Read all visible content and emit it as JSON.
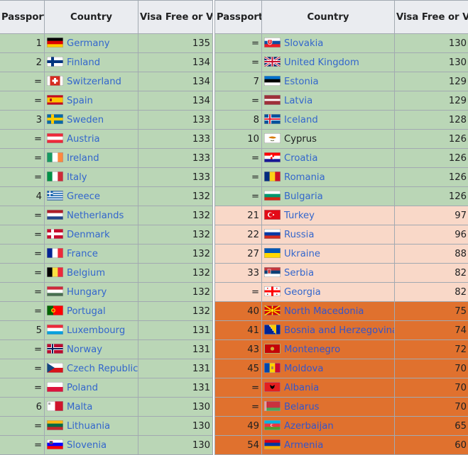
{
  "headers": {
    "rank": "Passport Rank",
    "country": "Country",
    "visa": "Visa Free or Visa on Arrival"
  },
  "left": [
    {
      "rank": "1",
      "country": "Germany",
      "visa": "135",
      "flag": "germany-flag-icon",
      "band": "g"
    },
    {
      "rank": "2",
      "country": "Finland",
      "visa": "134",
      "flag": "finland-flag-icon",
      "band": "g"
    },
    {
      "rank": "=",
      "country": "Switzerland",
      "visa": "134",
      "flag": "switzerland-flag-icon",
      "band": "g"
    },
    {
      "rank": "=",
      "country": "Spain",
      "visa": "134",
      "flag": "spain-flag-icon",
      "band": "g"
    },
    {
      "rank": "3",
      "country": "Sweden",
      "visa": "133",
      "flag": "sweden-flag-icon",
      "band": "g"
    },
    {
      "rank": "=",
      "country": "Austria",
      "visa": "133",
      "flag": "austria-flag-icon",
      "band": "g"
    },
    {
      "rank": "=",
      "country": "Ireland",
      "visa": "133",
      "flag": "ireland-flag-icon",
      "band": "g"
    },
    {
      "rank": "=",
      "country": "Italy",
      "visa": "133",
      "flag": "italy-flag-icon",
      "band": "g"
    },
    {
      "rank": "4",
      "country": "Greece",
      "visa": "132",
      "flag": "greece-flag-icon",
      "band": "g"
    },
    {
      "rank": "=",
      "country": "Netherlands",
      "visa": "132",
      "flag": "netherlands-flag-icon",
      "band": "g"
    },
    {
      "rank": "=",
      "country": "Denmark",
      "visa": "132",
      "flag": "denmark-flag-icon",
      "band": "g"
    },
    {
      "rank": "=",
      "country": "France",
      "visa": "132",
      "flag": "france-flag-icon",
      "band": "g"
    },
    {
      "rank": "=",
      "country": "Belgium",
      "visa": "132",
      "flag": "belgium-flag-icon",
      "band": "g"
    },
    {
      "rank": "=",
      "country": "Hungary",
      "visa": "132",
      "flag": "hungary-flag-icon",
      "band": "g"
    },
    {
      "rank": "=",
      "country": "Portugal",
      "visa": "132",
      "flag": "portugal-flag-icon",
      "band": "g"
    },
    {
      "rank": "5",
      "country": "Luxembourg",
      "visa": "131",
      "flag": "luxembourg-flag-icon",
      "band": "g"
    },
    {
      "rank": "=",
      "country": "Norway",
      "visa": "131",
      "flag": "norway-flag-icon",
      "band": "g"
    },
    {
      "rank": "=",
      "country": "Czech Republic",
      "visa": "131",
      "flag": "czech-republic-flag-icon",
      "band": "g"
    },
    {
      "rank": "=",
      "country": "Poland",
      "visa": "131",
      "flag": "poland-flag-icon",
      "band": "g"
    },
    {
      "rank": "6",
      "country": "Malta",
      "visa": "130",
      "flag": "malta-flag-icon",
      "band": "g"
    },
    {
      "rank": "=",
      "country": "Lithuania",
      "visa": "130",
      "flag": "lithuania-flag-icon",
      "band": "g"
    },
    {
      "rank": "=",
      "country": "Slovenia",
      "visa": "130",
      "flag": "slovenia-flag-icon",
      "band": "g"
    }
  ],
  "right": [
    {
      "rank": "=",
      "country": "Slovakia",
      "visa": "130",
      "flag": "slovakia-flag-icon",
      "band": "g"
    },
    {
      "rank": "=",
      "country": "United Kingdom",
      "visa": "130",
      "flag": "united-kingdom-flag-icon",
      "band": "g"
    },
    {
      "rank": "7",
      "country": "Estonia",
      "visa": "129",
      "flag": "estonia-flag-icon",
      "band": "g"
    },
    {
      "rank": "=",
      "country": "Latvia",
      "visa": "129",
      "flag": "latvia-flag-icon",
      "band": "g"
    },
    {
      "rank": "8",
      "country": "Iceland",
      "visa": "128",
      "flag": "iceland-flag-icon",
      "band": "g"
    },
    {
      "rank": "10",
      "country": "Cyprus",
      "visa": "126",
      "flag": "cyprus-flag-icon",
      "band": "g",
      "plain": true
    },
    {
      "rank": "=",
      "country": "Croatia",
      "visa": "126",
      "flag": "croatia-flag-icon",
      "band": "g"
    },
    {
      "rank": "=",
      "country": "Romania",
      "visa": "126",
      "flag": "romania-flag-icon",
      "band": "g"
    },
    {
      "rank": "=",
      "country": "Bulgaria",
      "visa": "126",
      "flag": "bulgaria-flag-icon",
      "band": "g"
    },
    {
      "rank": "21",
      "country": "Turkey",
      "visa": "97",
      "flag": "turkey-flag-icon",
      "band": "p"
    },
    {
      "rank": "22",
      "country": "Russia",
      "visa": "96",
      "flag": "russia-flag-icon",
      "band": "p"
    },
    {
      "rank": "27",
      "country": "Ukraine",
      "visa": "88",
      "flag": "ukraine-flag-icon",
      "band": "p"
    },
    {
      "rank": "33",
      "country": "Serbia",
      "visa": "82",
      "flag": "serbia-flag-icon",
      "band": "p"
    },
    {
      "rank": "=",
      "country": "Georgia",
      "visa": "82",
      "flag": "georgia-flag-icon",
      "band": "p"
    },
    {
      "rank": "40",
      "country": "North Macedonia",
      "visa": "75",
      "flag": "north-macedonia-flag-icon",
      "band": "o"
    },
    {
      "rank": "41",
      "country": "Bosnia and Herzegovina",
      "visa": "74",
      "flag": "bosnia-flag-icon",
      "band": "o"
    },
    {
      "rank": "43",
      "country": "Montenegro",
      "visa": "72",
      "flag": "montenegro-flag-icon",
      "band": "o"
    },
    {
      "rank": "45",
      "country": "Moldova",
      "visa": "70",
      "flag": "moldova-flag-icon",
      "band": "o"
    },
    {
      "rank": "=",
      "country": "Albania",
      "visa": "70",
      "flag": "albania-flag-icon",
      "band": "o"
    },
    {
      "rank": "=",
      "country": "Belarus",
      "visa": "70",
      "flag": "belarus-flag-icon",
      "band": "o"
    },
    {
      "rank": "49",
      "country": "Azerbaijan",
      "visa": "65",
      "flag": "azerbaijan-flag-icon",
      "band": "o"
    },
    {
      "rank": "54",
      "country": "Armenia",
      "visa": "60",
      "flag": "armenia-flag-icon",
      "band": "o"
    }
  ],
  "colors": {
    "green_band": "#bad6b6",
    "peach_band": "#f9d8c8",
    "orange_band": "#e0712e",
    "link": "#3366cc",
    "header_bg": "#eaecf0"
  }
}
